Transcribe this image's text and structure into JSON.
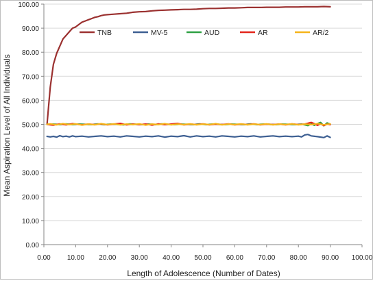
{
  "chart_data": {
    "type": "line",
    "title": "",
    "xlabel": "Length  of  Adolescence  (Number of Dates)",
    "ylabel": "Mean  Aspiration  Level  of  All  Individuals",
    "xlim": [
      0,
      100
    ],
    "ylim": [
      0,
      100
    ],
    "x_ticks": [
      "0.00",
      "10.00",
      "20.00",
      "30.00",
      "40.00",
      "50.00",
      "60.00",
      "70.00",
      "80.00",
      "90.00",
      "100.00"
    ],
    "y_ticks": [
      "0.00",
      "10.00",
      "20.00",
      "30.00",
      "40.00",
      "50.00",
      "60.00",
      "70.00",
      "80.00",
      "90.00",
      "100.00"
    ],
    "x_tick_values": [
      0,
      10,
      20,
      30,
      40,
      50,
      60,
      70,
      80,
      90,
      100
    ],
    "y_tick_values": [
      0,
      10,
      20,
      30,
      40,
      50,
      60,
      70,
      80,
      90,
      100
    ],
    "grid": "horizontal",
    "legend_position": "top",
    "series": [
      {
        "name": "TNB",
        "color": "#9B3130",
        "points": [
          [
            1,
            50
          ],
          [
            2,
            65.5
          ],
          [
            3,
            75
          ],
          [
            4,
            79.5
          ],
          [
            5,
            82.5
          ],
          [
            6,
            85.5
          ],
          [
            7,
            87
          ],
          [
            8,
            88.5
          ],
          [
            9,
            90
          ],
          [
            10,
            90.5
          ],
          [
            11,
            91.5
          ],
          [
            12,
            92.5
          ],
          [
            13,
            93
          ],
          [
            14,
            93.5
          ],
          [
            15,
            94
          ],
          [
            16,
            94.5
          ],
          [
            17,
            94.8
          ],
          [
            18,
            95.2
          ],
          [
            19,
            95.5
          ],
          [
            20,
            95.6
          ],
          [
            22,
            95.8
          ],
          [
            24,
            96
          ],
          [
            26,
            96.2
          ],
          [
            28,
            96.6
          ],
          [
            30,
            96.8
          ],
          [
            32,
            96.9
          ],
          [
            34,
            97.2
          ],
          [
            36,
            97.4
          ],
          [
            38,
            97.5
          ],
          [
            40,
            97.6
          ],
          [
            42,
            97.7
          ],
          [
            44,
            97.8
          ],
          [
            46,
            97.8
          ],
          [
            48,
            97.9
          ],
          [
            50,
            98.1
          ],
          [
            52,
            98.2
          ],
          [
            54,
            98.2
          ],
          [
            56,
            98.3
          ],
          [
            58,
            98.4
          ],
          [
            60,
            98.4
          ],
          [
            62,
            98.5
          ],
          [
            64,
            98.6
          ],
          [
            66,
            98.6
          ],
          [
            68,
            98.6
          ],
          [
            70,
            98.7
          ],
          [
            72,
            98.7
          ],
          [
            74,
            98.7
          ],
          [
            76,
            98.8
          ],
          [
            78,
            98.8
          ],
          [
            80,
            98.8
          ],
          [
            82,
            98.9
          ],
          [
            84,
            98.9
          ],
          [
            86,
            98.9
          ],
          [
            88,
            99
          ],
          [
            90,
            98.9
          ]
        ]
      },
      {
        "name": "MV-5",
        "color": "#3D5F92",
        "points": [
          [
            1,
            45
          ],
          [
            2,
            44.8
          ],
          [
            3,
            45
          ],
          [
            4,
            44.7
          ],
          [
            5,
            45.3
          ],
          [
            6,
            44.9
          ],
          [
            7,
            45.1
          ],
          [
            8,
            44.8
          ],
          [
            9,
            45.2
          ],
          [
            10,
            44.9
          ],
          [
            12,
            45.1
          ],
          [
            14,
            44.8
          ],
          [
            16,
            45
          ],
          [
            18,
            45.2
          ],
          [
            20,
            44.9
          ],
          [
            22,
            45.1
          ],
          [
            24,
            44.8
          ],
          [
            26,
            45.2
          ],
          [
            28,
            45
          ],
          [
            30,
            44.8
          ],
          [
            32,
            45.1
          ],
          [
            34,
            44.9
          ],
          [
            36,
            45.2
          ],
          [
            38,
            44.7
          ],
          [
            40,
            45.1
          ],
          [
            42,
            44.9
          ],
          [
            44,
            45.3
          ],
          [
            46,
            44.8
          ],
          [
            48,
            45.2
          ],
          [
            50,
            44.9
          ],
          [
            52,
            45.1
          ],
          [
            54,
            44.8
          ],
          [
            56,
            45.2
          ],
          [
            58,
            45
          ],
          [
            60,
            44.8
          ],
          [
            62,
            45.1
          ],
          [
            64,
            44.9
          ],
          [
            66,
            45.2
          ],
          [
            68,
            44.8
          ],
          [
            70,
            45
          ],
          [
            72,
            45.2
          ],
          [
            74,
            44.9
          ],
          [
            76,
            45.1
          ],
          [
            78,
            44.9
          ],
          [
            80,
            45.1
          ],
          [
            81,
            44.8
          ],
          [
            82,
            45.6
          ],
          [
            83,
            45.8
          ],
          [
            84,
            45.2
          ],
          [
            86,
            44.9
          ],
          [
            88,
            44.5
          ],
          [
            89,
            45.2
          ],
          [
            90,
            44.6
          ]
        ]
      },
      {
        "name": "AUD",
        "color": "#2EA043",
        "points": [
          [
            1,
            50
          ],
          [
            3,
            50.1
          ],
          [
            5,
            49.9
          ],
          [
            7,
            50.2
          ],
          [
            9,
            49.9
          ],
          [
            11,
            50.1
          ],
          [
            13,
            50
          ],
          [
            15,
            49.9
          ],
          [
            17,
            50.2
          ],
          [
            19,
            49.9
          ],
          [
            21,
            50.1
          ],
          [
            23,
            50
          ],
          [
            25,
            49.8
          ],
          [
            27,
            50.2
          ],
          [
            29,
            50
          ],
          [
            31,
            49.9
          ],
          [
            33,
            50.1
          ],
          [
            35,
            49.9
          ],
          [
            37,
            50.2
          ],
          [
            39,
            50
          ],
          [
            41,
            49.9
          ],
          [
            43,
            50.1
          ],
          [
            45,
            50
          ],
          [
            47,
            49.9
          ],
          [
            49,
            50.2
          ],
          [
            51,
            49.9
          ],
          [
            53,
            50.1
          ],
          [
            55,
            50
          ],
          [
            57,
            49.9
          ],
          [
            59,
            50.1
          ],
          [
            61,
            50
          ],
          [
            63,
            49.9
          ],
          [
            65,
            50.2
          ],
          [
            67,
            49.9
          ],
          [
            69,
            50.1
          ],
          [
            71,
            50
          ],
          [
            73,
            49.9
          ],
          [
            75,
            50.1
          ],
          [
            77,
            50
          ],
          [
            79,
            49.9
          ],
          [
            81,
            50.1
          ],
          [
            83,
            49.5
          ],
          [
            84,
            50.2
          ],
          [
            85,
            49.6
          ],
          [
            86,
            50.3
          ],
          [
            87,
            50.8
          ],
          [
            88,
            49.4
          ],
          [
            89,
            50.6
          ],
          [
            90,
            50.1
          ]
        ]
      },
      {
        "name": "AR",
        "color": "#E3261C",
        "points": [
          [
            1,
            50
          ],
          [
            3,
            49.7
          ],
          [
            5,
            50.2
          ],
          [
            7,
            49.8
          ],
          [
            9,
            50.3
          ],
          [
            10,
            50.1
          ],
          [
            12,
            49.8
          ],
          [
            14,
            50.1
          ],
          [
            16,
            49.9
          ],
          [
            18,
            50.2
          ],
          [
            20,
            49.8
          ],
          [
            22,
            50.1
          ],
          [
            24,
            50.4
          ],
          [
            26,
            49.8
          ],
          [
            28,
            50.1
          ],
          [
            30,
            49.9
          ],
          [
            32,
            50.1
          ],
          [
            34,
            49.7
          ],
          [
            36,
            50.2
          ],
          [
            38,
            49.9
          ],
          [
            40,
            50.1
          ],
          [
            42,
            50.4
          ],
          [
            44,
            49.8
          ],
          [
            46,
            50.1
          ],
          [
            48,
            49.9
          ],
          [
            50,
            50.2
          ],
          [
            52,
            49.8
          ],
          [
            54,
            50.1
          ],
          [
            56,
            49.9
          ],
          [
            58,
            50.2
          ],
          [
            60,
            49.8
          ],
          [
            62,
            50.1
          ],
          [
            64,
            49.9
          ],
          [
            66,
            50.2
          ],
          [
            68,
            49.8
          ],
          [
            70,
            50.1
          ],
          [
            72,
            49.9
          ],
          [
            74,
            50.1
          ],
          [
            76,
            49.8
          ],
          [
            78,
            50.2
          ],
          [
            80,
            49.9
          ],
          [
            82,
            50.1
          ],
          [
            84,
            50.8
          ],
          [
            85,
            50.3
          ],
          [
            86,
            49.6
          ],
          [
            87,
            50.2
          ],
          [
            88,
            49.5
          ],
          [
            89,
            50.1
          ],
          [
            90,
            49.9
          ]
        ]
      },
      {
        "name": "AR/2",
        "color": "#F5B41A",
        "points": [
          [
            1,
            50
          ],
          [
            2,
            50.2
          ],
          [
            4,
            49.8
          ],
          [
            6,
            50.3
          ],
          [
            8,
            49.9
          ],
          [
            10,
            50.2
          ],
          [
            12,
            49.7
          ],
          [
            14,
            50.1
          ],
          [
            16,
            49.8
          ],
          [
            18,
            50.3
          ],
          [
            20,
            49.9
          ],
          [
            22,
            50.2
          ],
          [
            24,
            49.8
          ],
          [
            26,
            50.1
          ],
          [
            28,
            49.9
          ],
          [
            30,
            50.2
          ],
          [
            32,
            49.7
          ],
          [
            34,
            50.1
          ],
          [
            36,
            49.9
          ],
          [
            38,
            50.3
          ],
          [
            40,
            49.8
          ],
          [
            42,
            50.1
          ],
          [
            44,
            49.9
          ],
          [
            46,
            50.2
          ],
          [
            48,
            49.8
          ],
          [
            50,
            50.1
          ],
          [
            52,
            49.9
          ],
          [
            54,
            50.3
          ],
          [
            56,
            49.8
          ],
          [
            58,
            50.1
          ],
          [
            60,
            49.9
          ],
          [
            62,
            50.2
          ],
          [
            64,
            49.8
          ],
          [
            66,
            50.1
          ],
          [
            68,
            49.9
          ],
          [
            70,
            50.2
          ],
          [
            72,
            49.8
          ],
          [
            74,
            50.1
          ],
          [
            76,
            49.9
          ],
          [
            78,
            50.2
          ],
          [
            80,
            49.8
          ],
          [
            82,
            50.1
          ],
          [
            84,
            49.9
          ],
          [
            86,
            50.3
          ],
          [
            88,
            49.8
          ],
          [
            90,
            50.2
          ]
        ]
      }
    ]
  }
}
